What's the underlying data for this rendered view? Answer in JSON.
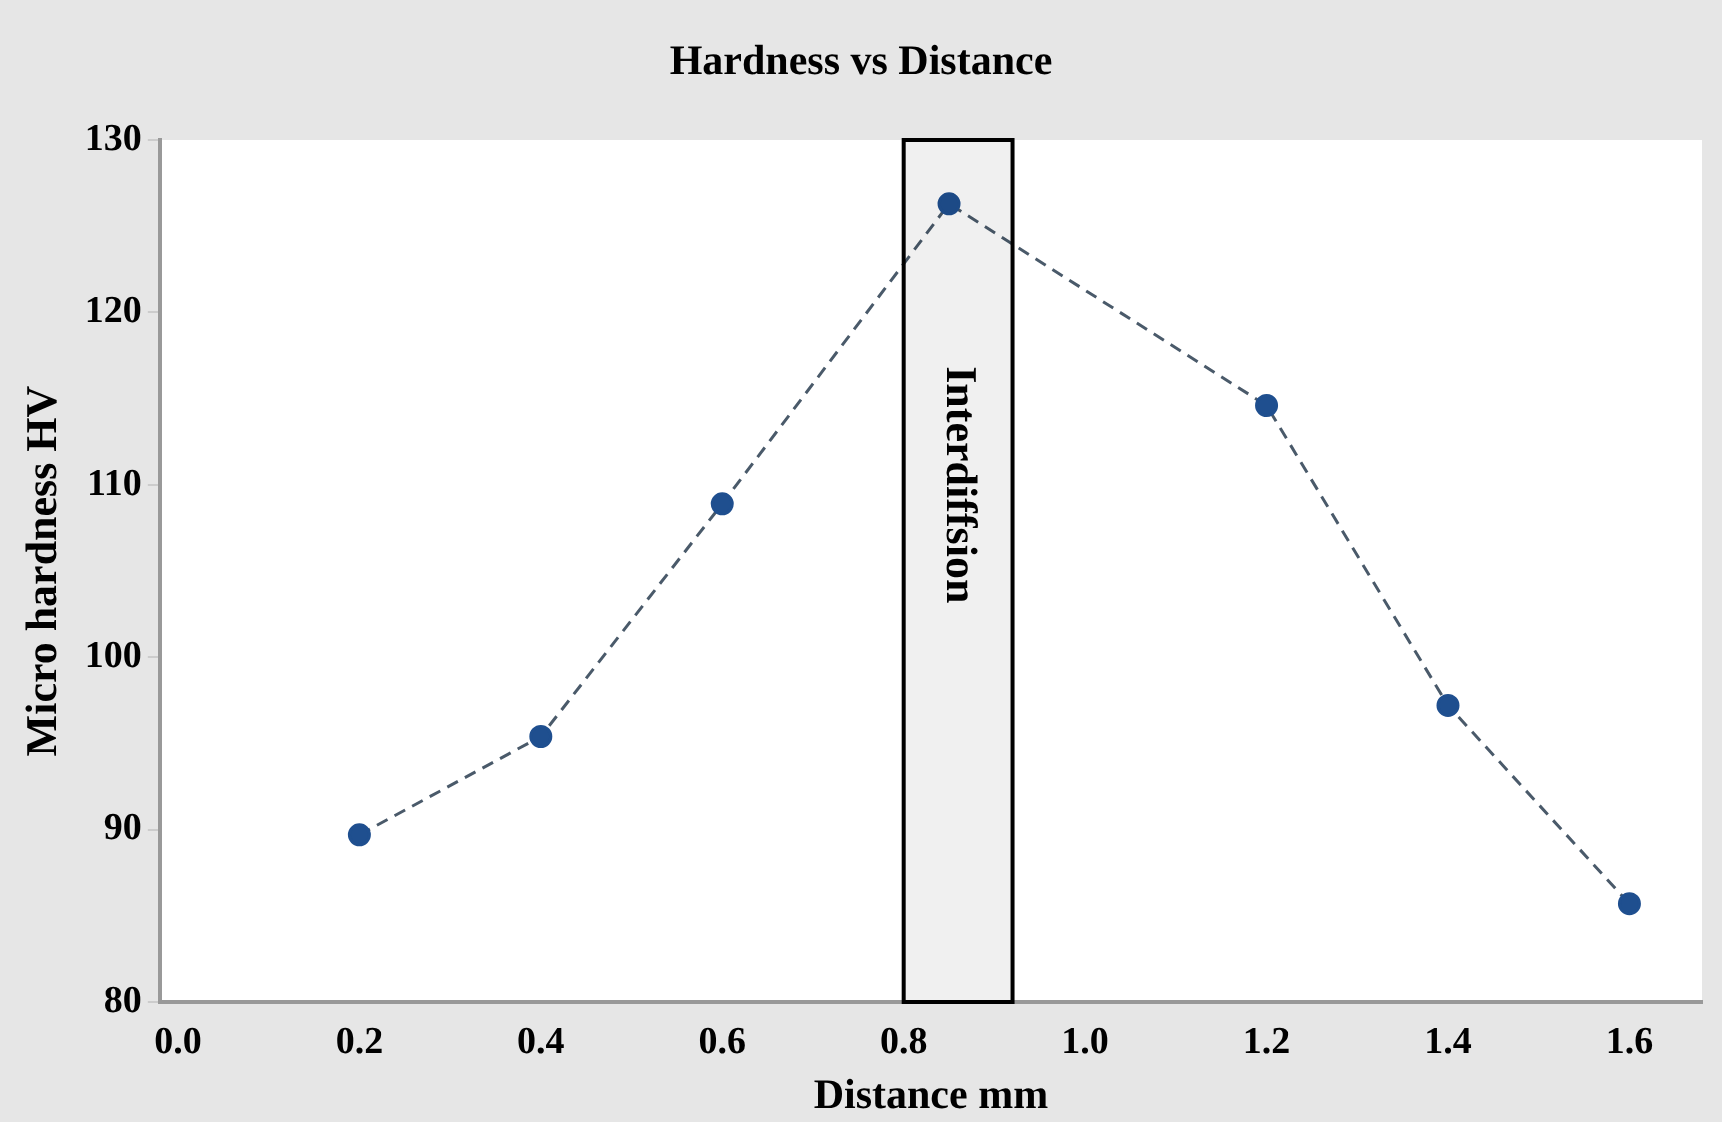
{
  "chart_data": {
    "type": "line",
    "title": "Hardness vs Distance",
    "xlabel": "Distance mm",
    "ylabel": "Micro hardness HV",
    "x": [
      0.2,
      0.4,
      0.6,
      0.85,
      1.2,
      1.4,
      1.6
    ],
    "series": [
      {
        "color": "#1f4f8f",
        "values": [
          89.7,
          95.4,
          108.9,
          126.3,
          114.6,
          97.2,
          85.7
        ]
      }
    ],
    "xlim": [
      -0.02,
      1.68
    ],
    "xticks": [
      {
        "value": 0,
        "label": "0.0"
      },
      0.2,
      0.4,
      0.6,
      0.8,
      {
        "value": 1,
        "label": "1.0"
      },
      1.2,
      1.4,
      1.6
    ],
    "ylim": [
      80,
      130
    ],
    "yticks": [
      80,
      90,
      100,
      110,
      120,
      130
    ],
    "bands": [
      {
        "axis": "x",
        "from": 0.8,
        "to": 0.92,
        "label": "Interdiffsion",
        "color": "#000000"
      }
    ],
    "grid": false,
    "legend": false,
    "marker": "circle",
    "line_style": "dashed"
  }
}
